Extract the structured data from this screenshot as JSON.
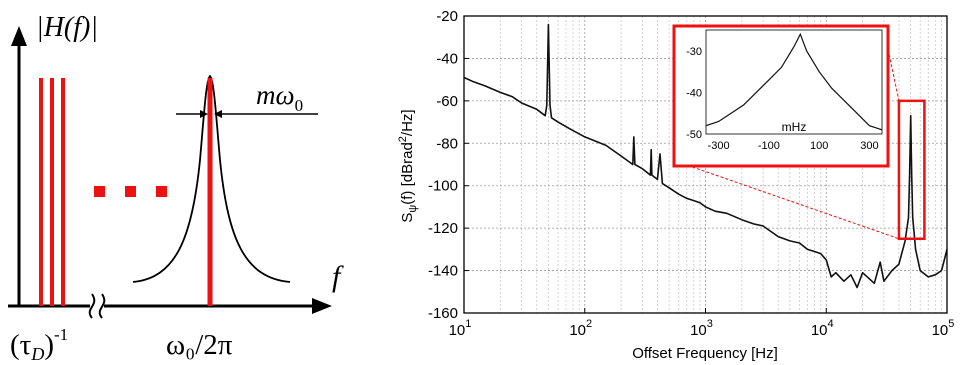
{
  "left_panel": {
    "y_label": "|H(f)|",
    "x_label": "f",
    "tick_left": "(τ",
    "tick_left_sub": "D",
    "tick_left_close": ")",
    "tick_left_exp": "-1",
    "tick_center": "ω₀/2π",
    "linewidth_label": "mω",
    "linewidth_sub": "0",
    "comb_color": "#ee1111",
    "ellipsis": "..."
  },
  "chart_data": {
    "type": "line",
    "xlabel": "Offset Frequency [Hz]",
    "ylabel": "S_ψ(f) [dBrad²/Hz]",
    "xscale": "log",
    "xlim": [
      10,
      100000
    ],
    "ylim": [
      -160,
      -20
    ],
    "x_ticks": [
      {
        "base": "10",
        "exp": "1",
        "value": 10
      },
      {
        "base": "10",
        "exp": "2",
        "value": 100
      },
      {
        "base": "10",
        "exp": "3",
        "value": 1000
      },
      {
        "base": "10",
        "exp": "4",
        "value": 10000
      },
      {
        "base": "10",
        "exp": "5",
        "value": 100000
      }
    ],
    "y_ticks": [
      "-20",
      "-40",
      "-60",
      "-80",
      "-100",
      "-120",
      "-140",
      "-160"
    ],
    "grid": true,
    "series": [
      {
        "color": "#111111",
        "x": [
          10,
          12,
          15,
          20,
          25,
          30,
          40,
          47,
          48.5,
          50,
          51.5,
          53,
          60,
          80,
          100,
          150,
          200,
          250,
          255,
          260,
          300,
          350,
          355,
          360,
          400,
          420,
          440,
          500,
          600,
          700,
          800,
          900,
          1000,
          1200,
          1500,
          2000,
          2500,
          3000,
          4000,
          5000,
          6000,
          7000,
          8000,
          9000,
          10000,
          11000,
          12000,
          14000,
          16000,
          18000,
          20000,
          25000,
          28000,
          30000,
          35000,
          40000,
          45000,
          48000,
          49000,
          50000,
          51000,
          52000,
          55000,
          60000,
          70000,
          80000,
          90000,
          95000,
          100000
        ],
        "y": [
          -49,
          -51,
          -53,
          -56,
          -58,
          -61,
          -64,
          -67,
          -62,
          -24,
          -62,
          -68,
          -70,
          -74,
          -77,
          -81,
          -86,
          -90,
          -77,
          -90,
          -92,
          -95,
          -83,
          -95,
          -97,
          -85,
          -99,
          -101,
          -104,
          -106,
          -107,
          -108,
          -110,
          -112,
          -113,
          -116,
          -118,
          -119,
          -124,
          -126,
          -127,
          -130,
          -131,
          -132,
          -135,
          -143,
          -141,
          -145,
          -142,
          -148,
          -141,
          -146,
          -136,
          -145,
          -140,
          -137,
          -126,
          -115,
          -95,
          -67,
          -95,
          -115,
          -130,
          -140,
          -143,
          -142,
          -140,
          -135,
          -130
        ]
      }
    ],
    "highlight_box": {
      "x": [
        40000,
        65000
      ],
      "y": [
        -125,
        -60
      ],
      "color": "#ee1111"
    },
    "inset": {
      "xlabel": "mHz",
      "xlim": [
        -350,
        350
      ],
      "ylim": [
        -50,
        -25
      ],
      "x_ticks": [
        "-300",
        "-100",
        "100",
        "300"
      ],
      "y_ticks": [
        "-30",
        "-40",
        "-50"
      ],
      "grid": false,
      "border_color": "#ee1111",
      "x": [
        -350,
        -300,
        -250,
        -200,
        -150,
        -100,
        -50,
        0,
        25,
        50,
        100,
        150,
        200,
        250,
        300,
        350
      ],
      "y": [
        -48,
        -47,
        -45,
        -43,
        -40,
        -37,
        -34,
        -29,
        -26,
        -30,
        -35,
        -39,
        -42,
        -45,
        -48,
        -49
      ]
    }
  }
}
